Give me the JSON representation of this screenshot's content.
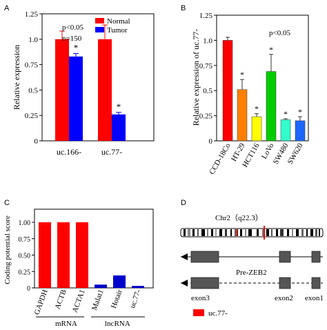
{
  "panel_labels": [
    "A",
    "B",
    "C",
    "D"
  ],
  "colors": {
    "normal": "#ff0000",
    "tumor": "#0000ff",
    "ccd18co": "#ff0000",
    "ht29": "#ff8000",
    "hct116": "#ffff00",
    "lovo": "#00cc00",
    "sw480": "#33ffcc",
    "sw620": "#1a66ff",
    "coding_mrna": "#ff0000",
    "coding_lncrna": "#0000cc",
    "gene_box": "#555555",
    "uc77_marker": "#ff0000"
  },
  "chart_data": [
    {
      "panel": "A",
      "type": "bar",
      "categories": [
        "uc.166-",
        "uc.77-"
      ],
      "series": [
        {
          "name": "Normal",
          "values": [
            1.0,
            1.0
          ],
          "errors": [
            0.08,
            0.14
          ]
        },
        {
          "name": "Tumor",
          "values": [
            0.83,
            0.26
          ],
          "errors": [
            0.03,
            0.02
          ]
        }
      ],
      "significance": [
        "*",
        "*"
      ],
      "annotations": [
        "p<0.05",
        "n=150"
      ],
      "ylabel": "Relative expression",
      "yticks": [
        "0",
        "0.25",
        "0.5",
        "0.75",
        "1.0",
        "1.25"
      ],
      "ylim": [
        0,
        1.25
      ],
      "legend_position": "top-right"
    },
    {
      "panel": "B",
      "type": "bar",
      "categories": [
        "CCD-18Co",
        "HT-29",
        "HCT116",
        "LoVo",
        "SW480",
        "SW620"
      ],
      "values": [
        1.0,
        0.51,
        0.24,
        0.69,
        0.21,
        0.2
      ],
      "errors": [
        0.03,
        0.1,
        0.03,
        0.17,
        0.01,
        0.04
      ],
      "significance": [
        "",
        "*",
        "*",
        "*",
        "*",
        "*"
      ],
      "annotations": [
        "p<0.05"
      ],
      "ylabel": "Relative expression of  uc.77-",
      "yticks": [
        "0",
        "0.25",
        "0.5",
        "0.75",
        "1.0",
        "1.25"
      ],
      "ylim": [
        0,
        1.25
      ]
    },
    {
      "panel": "C",
      "type": "bar",
      "categories": [
        "GAPDH",
        "ACTB",
        "ACTA1",
        "Malat1",
        "Hotair",
        "uc.77-"
      ],
      "values": [
        1.0,
        1.0,
        1.0,
        0.05,
        0.19,
        0.03
      ],
      "groups": [
        {
          "label": "mRNA",
          "members": [
            "GAPDH",
            "ACTB",
            "ACTA1"
          ]
        },
        {
          "label": "lncRNA",
          "members": [
            "Malat1",
            "Hotair",
            "uc.77-"
          ]
        }
      ],
      "ylabel": "Coding potential score",
      "yticks": [
        "0",
        "0.25",
        "0.50",
        "0.75",
        "1.00"
      ],
      "ylim": [
        0,
        1.2
      ]
    }
  ],
  "panel_d": {
    "chromosome_label": "Chr2（q22.3）",
    "gene_label": "Pre-ZEB2",
    "exon_labels": [
      "exon3",
      "exon2",
      "exon1"
    ],
    "legend_label": "uc.77-"
  }
}
